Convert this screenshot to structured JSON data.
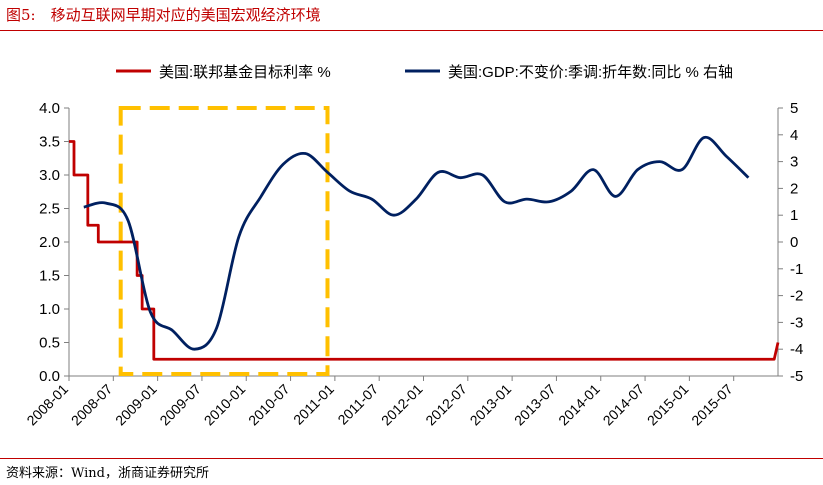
{
  "figure": {
    "title": "图5:　移动互联网早期对应的美国宏观经济环境",
    "source": "资料来源：Wind，浙商证券研究所"
  },
  "chart_data": {
    "type": "line",
    "x_type": "month",
    "x_start": "2008-01",
    "x_end": "2016-01",
    "x_ticks": [
      "2008-01",
      "2008-07",
      "2009-01",
      "2009-07",
      "2010-01",
      "2010-07",
      "2011-01",
      "2011-07",
      "2012-01",
      "2012-07",
      "2013-01",
      "2013-07",
      "2014-01",
      "2014-07",
      "2015-01",
      "2015-07"
    ],
    "left_axis": {
      "ylim": [
        0,
        4.0
      ],
      "ticks": [
        "0.0",
        "0.5",
        "1.0",
        "1.5",
        "2.0",
        "2.5",
        "3.0",
        "3.5",
        "4.0"
      ]
    },
    "right_axis": {
      "ylim": [
        -5,
        5
      ],
      "ticks": [
        "-5",
        "-4",
        "-3",
        "-2",
        "-1",
        "0",
        "1",
        "2",
        "3",
        "4",
        "5"
      ]
    },
    "highlight_box": {
      "x_from": "2008-08",
      "x_to": "2010-12",
      "color": "#ffc000"
    },
    "series": [
      {
        "name": "美国:联邦基金目标利率 %",
        "axis": "left",
        "color": "#c00000",
        "points": [
          [
            "2008-01-01",
            3.5
          ],
          [
            "2008-01-22",
            3.0
          ],
          [
            "2008-01-30",
            3.0
          ],
          [
            "2008-03-18",
            2.25
          ],
          [
            "2008-04-30",
            2.0
          ],
          [
            "2008-10-08",
            1.5
          ],
          [
            "2008-10-29",
            1.0
          ],
          [
            "2008-12-16",
            0.25
          ],
          [
            "2015-12-16",
            0.25
          ],
          [
            "2016-01-01",
            0.5
          ]
        ]
      },
      {
        "name": "美国:GDP:不变价:季调:折年数:同比 % 右轴",
        "axis": "right",
        "color": "#002060",
        "points": [
          [
            "2008-03",
            1.3
          ],
          [
            "2008-06",
            1.45
          ],
          [
            "2008-09",
            0.8
          ],
          [
            "2008-12",
            -2.6
          ],
          [
            "2009-03",
            -3.3
          ],
          [
            "2009-06",
            -4.0
          ],
          [
            "2009-09",
            -3.2
          ],
          [
            "2009-12",
            0.2
          ],
          [
            "2010-03",
            1.7
          ],
          [
            "2010-06",
            2.9
          ],
          [
            "2010-09",
            3.3
          ],
          [
            "2010-12",
            2.6
          ],
          [
            "2011-03",
            1.9
          ],
          [
            "2011-06",
            1.6
          ],
          [
            "2011-09",
            1.0
          ],
          [
            "2011-12",
            1.6
          ],
          [
            "2012-03",
            2.6
          ],
          [
            "2012-06",
            2.4
          ],
          [
            "2012-09",
            2.5
          ],
          [
            "2012-12",
            1.5
          ],
          [
            "2013-03",
            1.6
          ],
          [
            "2013-06",
            1.5
          ],
          [
            "2013-09",
            1.9
          ],
          [
            "2013-12",
            2.7
          ],
          [
            "2014-03",
            1.7
          ],
          [
            "2014-06",
            2.7
          ],
          [
            "2014-09",
            3.0
          ],
          [
            "2014-12",
            2.7
          ],
          [
            "2015-03",
            3.9
          ],
          [
            "2015-06",
            3.2
          ],
          [
            "2015-09",
            2.4
          ]
        ]
      }
    ]
  }
}
